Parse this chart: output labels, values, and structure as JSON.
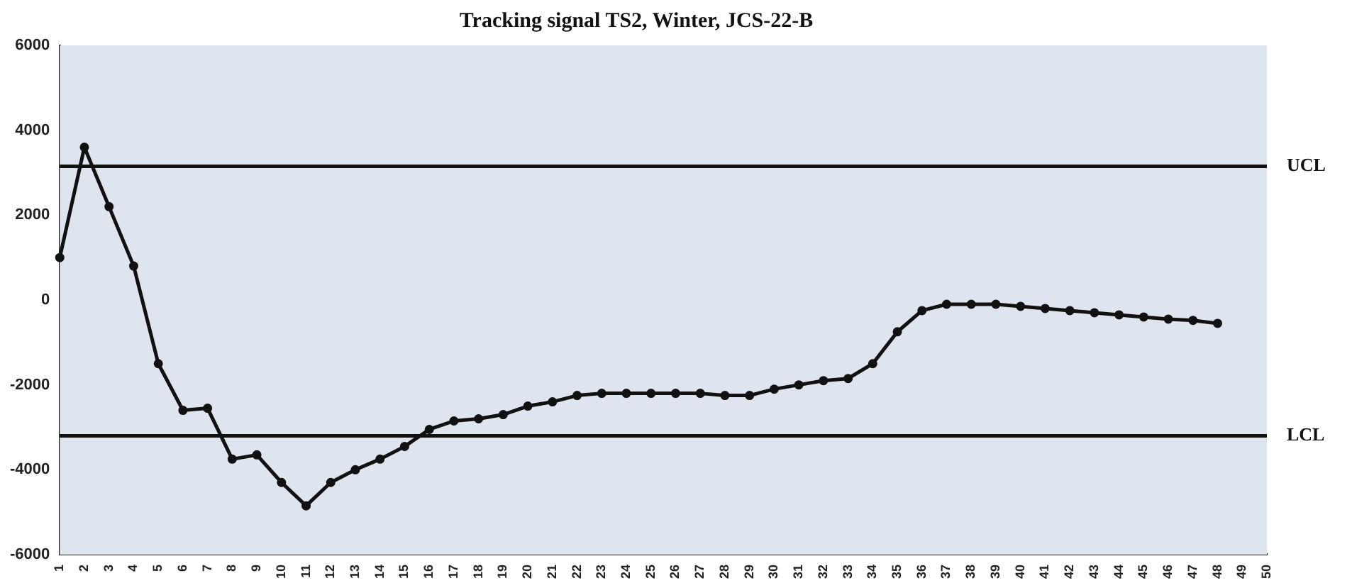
{
  "chart_data": {
    "type": "line",
    "title": "Tracking signal TS2, Winter, JCS-22-B",
    "categories": [
      "1",
      "2",
      "3",
      "4",
      "5",
      "6",
      "7",
      "8",
      "9",
      "10",
      "11",
      "12",
      "13",
      "14",
      "15",
      "16",
      "17",
      "18",
      "19",
      "20",
      "21",
      "22",
      "23",
      "24",
      "25",
      "26",
      "27",
      "28",
      "29",
      "30",
      "31",
      "32",
      "33",
      "34",
      "35",
      "36",
      "37",
      "38",
      "39",
      "40",
      "41",
      "42",
      "43",
      "44",
      "45",
      "46",
      "47",
      "48",
      "49",
      "50"
    ],
    "series": [
      {
        "color": "#111111",
        "values": [
          1000,
          3600,
          2200,
          800,
          -1500,
          -2600,
          -2550,
          -3750,
          -3650,
          -4300,
          -4850,
          -4300,
          -4000,
          -3750,
          -3450,
          -3050,
          -2850,
          -2800,
          -2700,
          -2500,
          -2400,
          -2250,
          -2200,
          -2200,
          -2200,
          -2200,
          -2200,
          -2250,
          -2250,
          -2100,
          -2000,
          -1900,
          -1850,
          -1500,
          -750,
          -250,
          -100,
          -100,
          -100,
          -150,
          -200,
          -250,
          -300,
          -350,
          -400,
          -450,
          -480,
          -550,
          null,
          null
        ]
      }
    ],
    "ylim": [
      -6000,
      6000
    ],
    "yticks": [
      -6000,
      -4000,
      -2000,
      0,
      2000,
      4000,
      6000
    ],
    "ref_lines": [
      {
        "axis": "y",
        "value": 3150,
        "label": "UCL",
        "color": "#111111"
      },
      {
        "axis": "y",
        "value": -3200,
        "label": "LCL",
        "color": "#111111"
      }
    ],
    "grid": false,
    "legend": false,
    "marker": "circle",
    "line_style": "solid"
  }
}
